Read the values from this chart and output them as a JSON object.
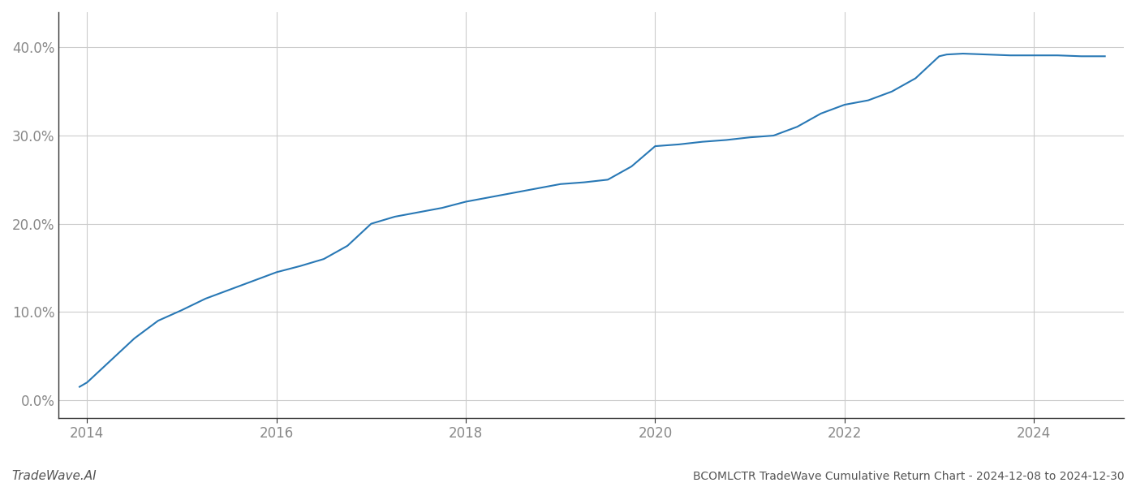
{
  "title": "BCOMLCTR TradeWave Cumulative Return Chart - 2024-12-08 to 2024-12-30",
  "watermark": "TradeWave.AI",
  "line_color": "#2878b5",
  "line_width": 1.5,
  "background_color": "#ffffff",
  "grid_color": "#cccccc",
  "x_years": [
    2013.92,
    2014.0,
    2014.25,
    2014.5,
    2014.75,
    2015.0,
    2015.25,
    2015.5,
    2015.75,
    2016.0,
    2016.25,
    2016.5,
    2016.75,
    2017.0,
    2017.25,
    2017.5,
    2017.75,
    2018.0,
    2018.25,
    2018.5,
    2018.75,
    2019.0,
    2019.25,
    2019.5,
    2019.75,
    2020.0,
    2020.25,
    2020.5,
    2020.75,
    2021.0,
    2021.25,
    2021.5,
    2021.75,
    2022.0,
    2022.25,
    2022.5,
    2022.75,
    2023.0,
    2023.08,
    2023.25,
    2023.5,
    2023.75,
    2024.0,
    2024.25,
    2024.5,
    2024.75
  ],
  "y_values": [
    1.5,
    2.0,
    4.5,
    7.0,
    9.0,
    10.2,
    11.5,
    12.5,
    13.5,
    14.5,
    15.2,
    16.0,
    17.5,
    20.0,
    20.8,
    21.3,
    21.8,
    22.5,
    23.0,
    23.5,
    24.0,
    24.5,
    24.7,
    25.0,
    26.5,
    28.8,
    29.0,
    29.3,
    29.5,
    29.8,
    30.0,
    31.0,
    32.5,
    33.5,
    34.0,
    35.0,
    36.5,
    39.0,
    39.2,
    39.3,
    39.2,
    39.1,
    39.1,
    39.1,
    39.0,
    39.0
  ],
  "xlim": [
    2013.7,
    2024.95
  ],
  "ylim": [
    -2.0,
    44.0
  ],
  "yticks": [
    0.0,
    10.0,
    20.0,
    30.0,
    40.0
  ],
  "xticks": [
    2014,
    2016,
    2018,
    2020,
    2022,
    2024
  ],
  "tick_fontsize": 12,
  "title_fontsize": 10,
  "watermark_fontsize": 11
}
